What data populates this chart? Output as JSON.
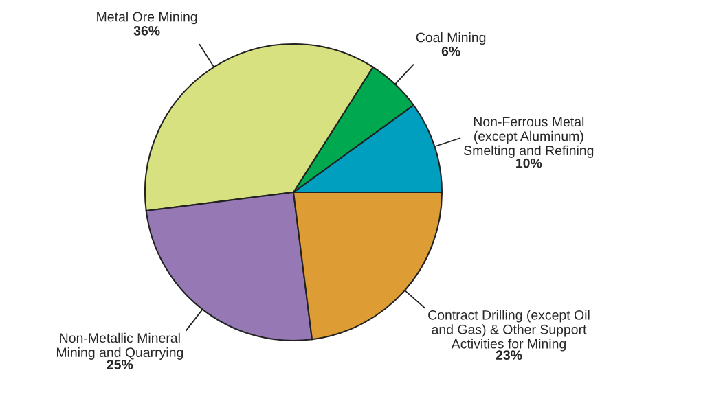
{
  "chart_data": {
    "type": "pie",
    "categories": [
      "Non-Ferrous Metal\n(except Aluminum)\nSmelting and Refining",
      "Coal Mining",
      "Metal Ore Mining",
      "Non-Metallic Mineral\nMining and Quarrying",
      "Contract Drilling (except Oil\nand Gas) & Other Support\nActivities for Mining"
    ],
    "values": [
      10,
      6,
      36,
      25,
      23
    ],
    "value_labels": [
      "10%",
      "6%",
      "36%",
      "25%",
      "23%"
    ],
    "colors": [
      "#009fbf",
      "#00a84f",
      "#d7e17f",
      "#9678b5",
      "#dd9d34"
    ]
  }
}
